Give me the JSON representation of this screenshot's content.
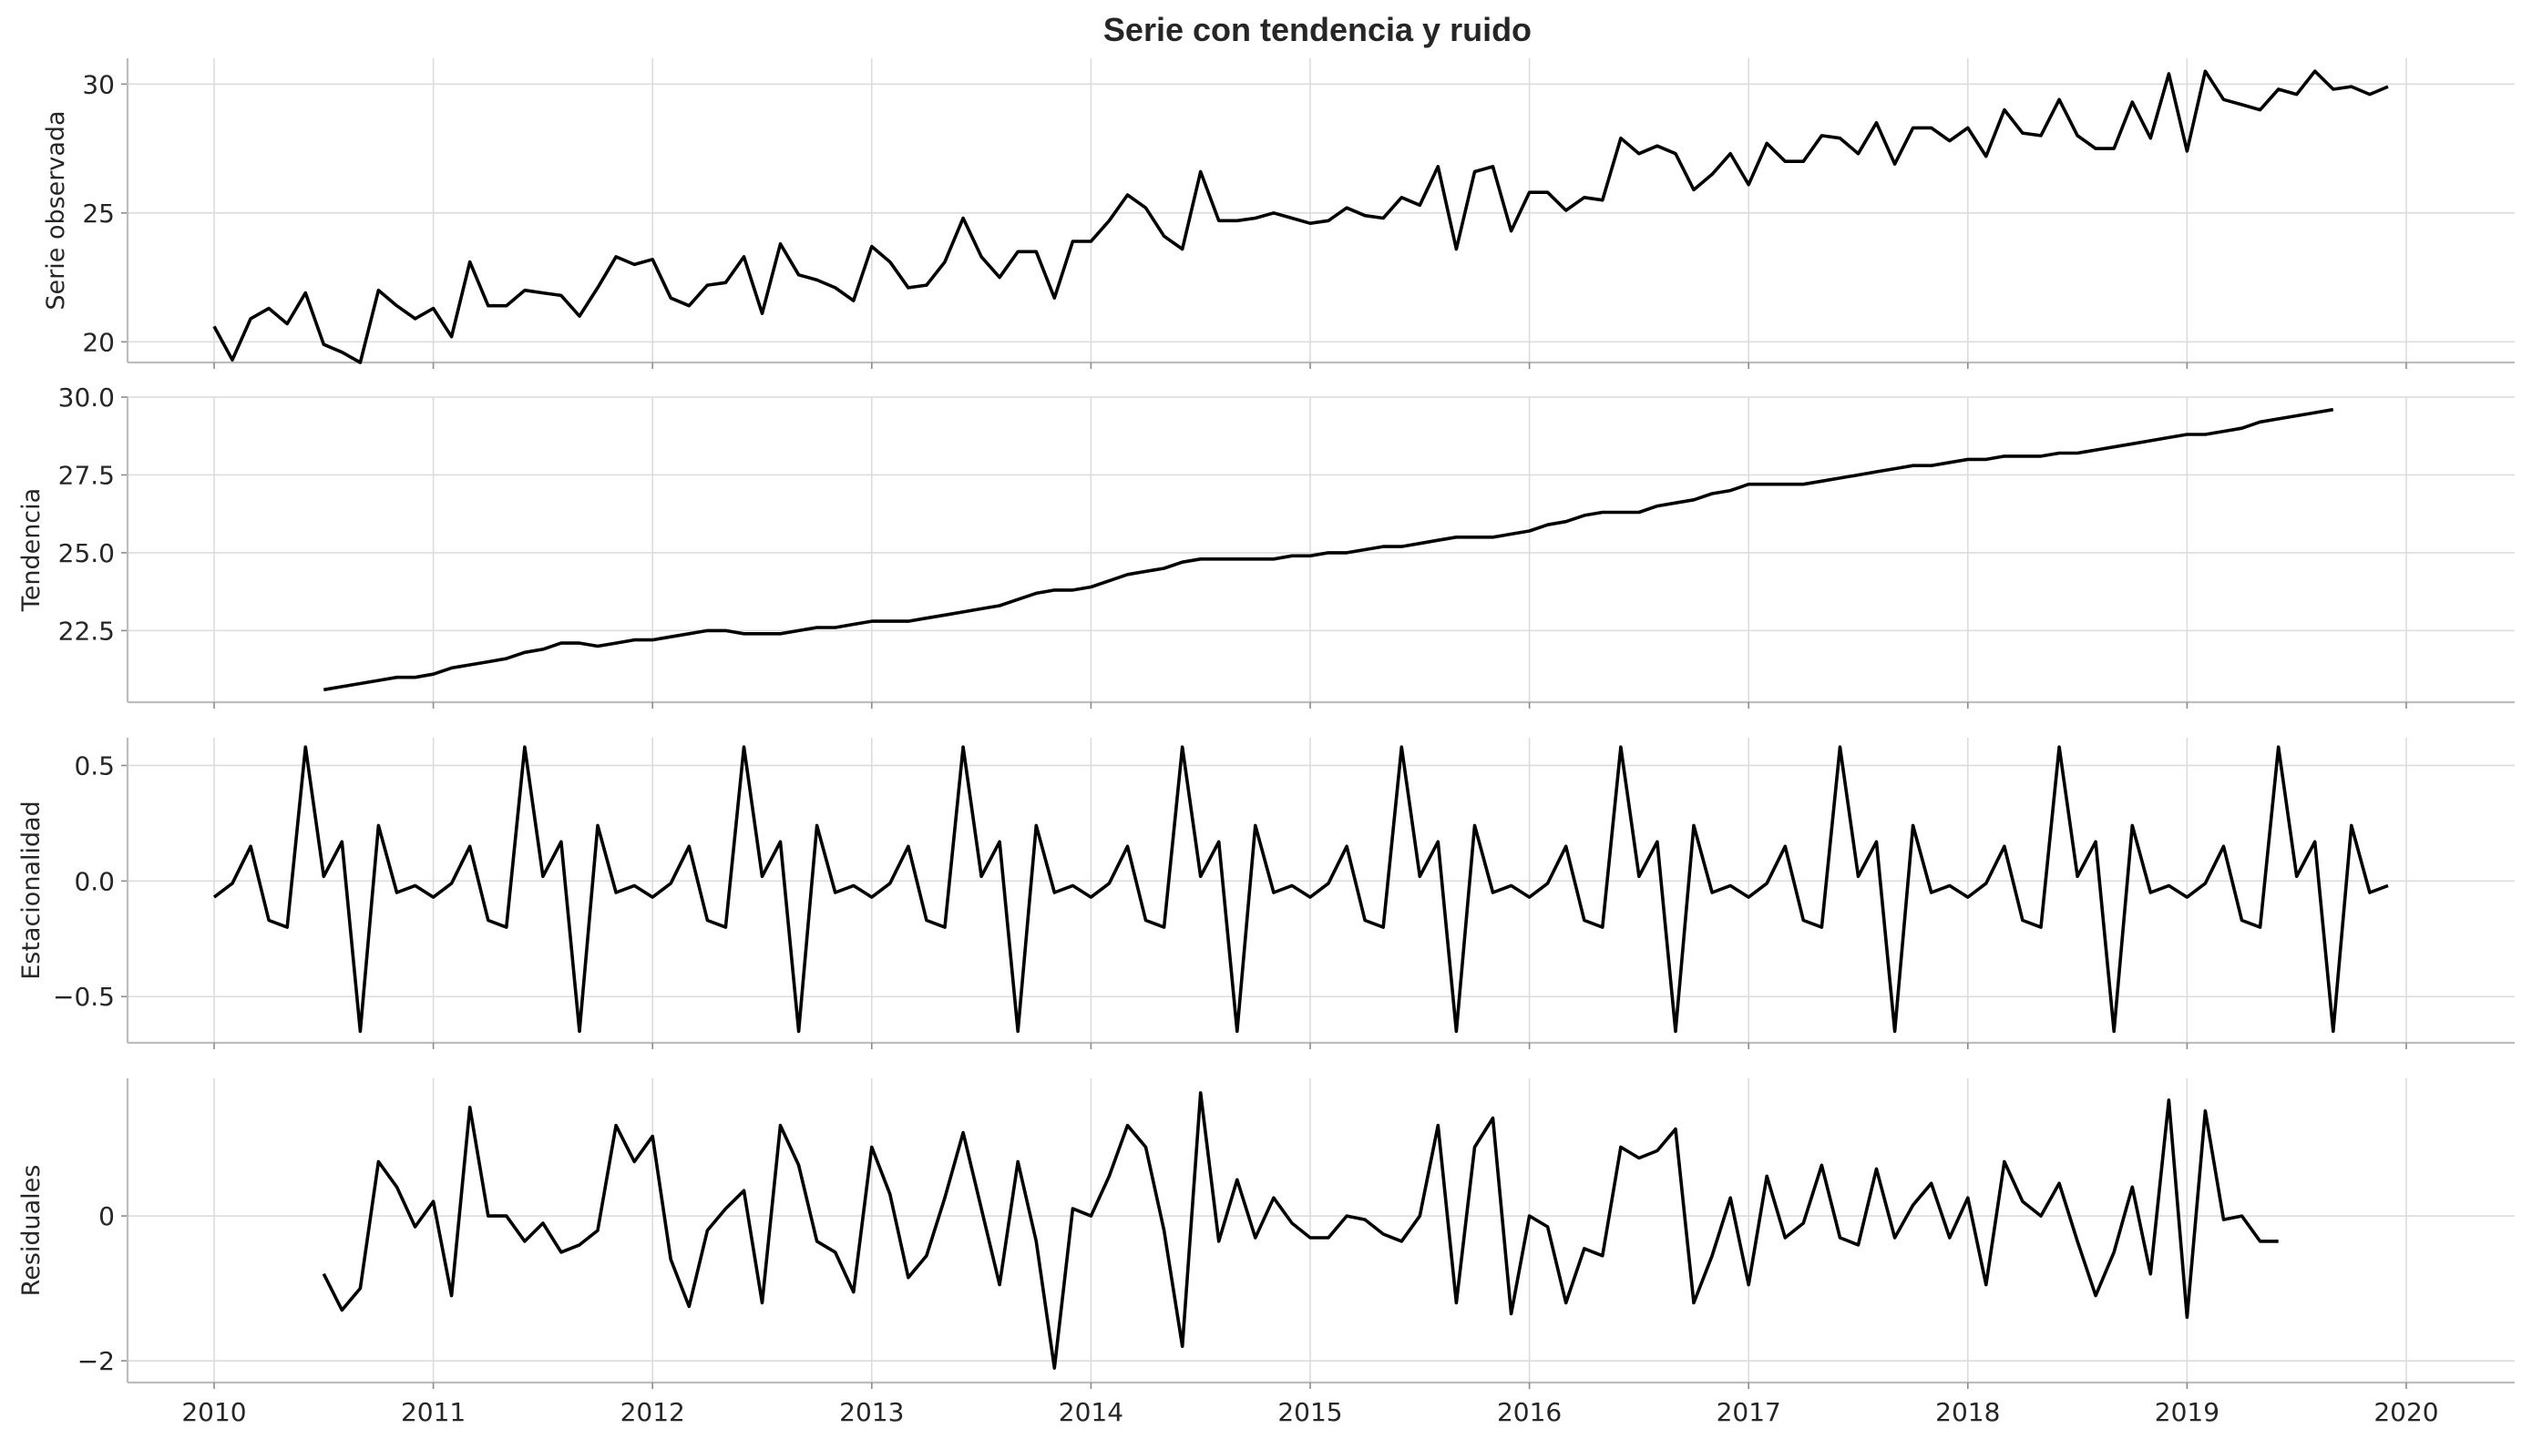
{
  "chart_data": {
    "type": "line",
    "title": "Serie con tendencia y ruido",
    "xlabel": "",
    "x_start": "2010-01",
    "x_frequency": "monthly",
    "x_ticks": [
      "2010",
      "2011",
      "2012",
      "2013",
      "2014",
      "2015",
      "2016",
      "2017",
      "2018",
      "2019",
      "2020"
    ],
    "grid": true,
    "line_color": "#000000",
    "panels": [
      {
        "ylabel": "Serie observada",
        "ylim": [
          19.2,
          31.0
        ],
        "yticks": [
          20,
          25,
          30
        ],
        "ytick_labels": [
          "20",
          "25",
          "30"
        ],
        "values": [
          20.6,
          19.3,
          20.9,
          21.3,
          20.7,
          21.9,
          19.9,
          19.6,
          19.2,
          22.0,
          21.4,
          20.9,
          21.3,
          20.2,
          23.1,
          21.4,
          21.4,
          22.0,
          21.9,
          21.8,
          21.0,
          22.1,
          23.3,
          23.0,
          23.2,
          21.7,
          21.4,
          22.2,
          22.3,
          23.3,
          21.1,
          23.8,
          22.6,
          22.4,
          22.1,
          21.6,
          23.7,
          23.1,
          22.1,
          22.2,
          23.1,
          24.8,
          23.3,
          22.5,
          23.5,
          23.5,
          21.7,
          23.9,
          23.9,
          24.7,
          25.7,
          25.2,
          24.1,
          23.6,
          26.6,
          24.7,
          24.7,
          24.8,
          25.0,
          24.8,
          24.6,
          24.7,
          25.2,
          24.9,
          24.8,
          25.6,
          25.3,
          26.8,
          23.6,
          26.6,
          26.8,
          24.3,
          25.8,
          25.8,
          25.1,
          25.6,
          25.5,
          27.9,
          27.3,
          27.6,
          27.3,
          25.9,
          26.5,
          27.3,
          26.1,
          27.7,
          27.0,
          27.0,
          28.0,
          27.9,
          27.3,
          28.5,
          26.9,
          28.3,
          28.3,
          27.8,
          28.3,
          27.2,
          29.0,
          28.1,
          28.0,
          29.4,
          28.0,
          27.5,
          27.5,
          29.3,
          27.9,
          30.4,
          27.4,
          30.5,
          29.4,
          29.2,
          29.0,
          29.8,
          29.6,
          30.5,
          29.8,
          29.9,
          29.6,
          29.9
        ]
      },
      {
        "ylabel": "Tendencia",
        "ylim": [
          20.2,
          30.0
        ],
        "yticks": [
          22.5,
          25.0,
          27.5,
          30.0
        ],
        "ytick_labels": [
          "22.5",
          "25.0",
          "27.5",
          "30.0"
        ],
        "start_index": 6,
        "values": [
          20.6,
          20.7,
          20.8,
          20.9,
          21.0,
          21.0,
          21.1,
          21.3,
          21.4,
          21.5,
          21.6,
          21.8,
          21.9,
          22.1,
          22.1,
          22.0,
          22.1,
          22.2,
          22.2,
          22.3,
          22.4,
          22.5,
          22.5,
          22.4,
          22.4,
          22.4,
          22.5,
          22.6,
          22.6,
          22.7,
          22.8,
          22.8,
          22.8,
          22.9,
          23.0,
          23.1,
          23.2,
          23.3,
          23.5,
          23.7,
          23.8,
          23.8,
          23.9,
          24.1,
          24.3,
          24.4,
          24.5,
          24.7,
          24.8,
          24.8,
          24.8,
          24.8,
          24.8,
          24.9,
          24.9,
          25.0,
          25.0,
          25.1,
          25.2,
          25.2,
          25.3,
          25.4,
          25.5,
          25.5,
          25.5,
          25.6,
          25.7,
          25.9,
          26.0,
          26.2,
          26.3,
          26.3,
          26.3,
          26.5,
          26.6,
          26.7,
          26.9,
          27.0,
          27.2,
          27.2,
          27.2,
          27.2,
          27.3,
          27.4,
          27.5,
          27.6,
          27.7,
          27.8,
          27.8,
          27.9,
          28.0,
          28.0,
          28.1,
          28.1,
          28.1,
          28.2,
          28.2,
          28.3,
          28.4,
          28.5,
          28.6,
          28.7,
          28.8,
          28.8,
          28.9,
          29.0,
          29.2,
          29.3,
          29.4,
          29.5,
          29.6
        ]
      },
      {
        "ylabel": "Estacionalidad",
        "ylim": [
          -0.7,
          0.62
        ],
        "yticks": [
          -0.5,
          0.0,
          0.5
        ],
        "ytick_labels": [
          "−0.5",
          "0.0",
          "0.5"
        ],
        "values": [
          -0.07,
          -0.01,
          0.15,
          -0.17,
          -0.2,
          0.58,
          0.02,
          0.17,
          -0.65,
          0.24,
          -0.05,
          -0.02,
          -0.07,
          -0.01,
          0.15,
          -0.17,
          -0.2,
          0.58,
          0.02,
          0.17,
          -0.65,
          0.24,
          -0.05,
          -0.02,
          -0.07,
          -0.01,
          0.15,
          -0.17,
          -0.2,
          0.58,
          0.02,
          0.17,
          -0.65,
          0.24,
          -0.05,
          -0.02,
          -0.07,
          -0.01,
          0.15,
          -0.17,
          -0.2,
          0.58,
          0.02,
          0.17,
          -0.65,
          0.24,
          -0.05,
          -0.02,
          -0.07,
          -0.01,
          0.15,
          -0.17,
          -0.2,
          0.58,
          0.02,
          0.17,
          -0.65,
          0.24,
          -0.05,
          -0.02,
          -0.07,
          -0.01,
          0.15,
          -0.17,
          -0.2,
          0.58,
          0.02,
          0.17,
          -0.65,
          0.24,
          -0.05,
          -0.02,
          -0.07,
          -0.01,
          0.15,
          -0.17,
          -0.2,
          0.58,
          0.02,
          0.17,
          -0.65,
          0.24,
          -0.05,
          -0.02,
          -0.07,
          -0.01,
          0.15,
          -0.17,
          -0.2,
          0.58,
          0.02,
          0.17,
          -0.65,
          0.24,
          -0.05,
          -0.02,
          -0.07,
          -0.01,
          0.15,
          -0.17,
          -0.2,
          0.58,
          0.02,
          0.17,
          -0.65,
          0.24,
          -0.05,
          -0.02,
          -0.07,
          -0.01,
          0.15,
          -0.17,
          -0.2,
          0.58,
          0.02,
          0.17,
          -0.65,
          0.24,
          -0.05,
          -0.02
        ]
      },
      {
        "ylabel": "Residuales",
        "ylim": [
          -2.3,
          1.9
        ],
        "yticks": [
          -2,
          0
        ],
        "ytick_labels": [
          "−2",
          "0"
        ],
        "start_index": 6,
        "values": [
          -0.8,
          -1.3,
          -1.0,
          0.75,
          0.4,
          -0.15,
          0.2,
          -1.1,
          1.5,
          0.0,
          0.0,
          -0.35,
          -0.1,
          -0.5,
          -0.4,
          -0.2,
          1.25,
          0.75,
          1.1,
          -0.6,
          -1.25,
          -0.2,
          0.1,
          0.35,
          -1.2,
          1.25,
          0.7,
          -0.35,
          -0.5,
          -1.05,
          0.95,
          0.3,
          -0.85,
          -0.55,
          0.25,
          1.15,
          0.1,
          -0.95,
          0.75,
          -0.35,
          -2.1,
          0.1,
          0.0,
          0.55,
          1.25,
          0.95,
          -0.2,
          -1.8,
          1.7,
          -0.35,
          0.5,
          -0.3,
          0.25,
          -0.1,
          -0.3,
          -0.3,
          0.0,
          -0.05,
          -0.25,
          -0.35,
          0.0,
          1.25,
          -1.2,
          0.95,
          1.35,
          -1.35,
          0.0,
          -0.15,
          -1.2,
          -0.45,
          -0.55,
          0.95,
          0.8,
          0.9,
          1.2,
          -1.2,
          -0.55,
          0.25,
          -0.95,
          0.55,
          -0.3,
          -0.1,
          0.7,
          -0.3,
          -0.4,
          0.65,
          -0.3,
          0.15,
          0.45,
          -0.3,
          0.25,
          -0.95,
          0.75,
          0.2,
          0.0,
          0.45,
          -0.35,
          -1.1,
          -0.5,
          0.4,
          -0.8,
          1.6,
          -1.4,
          1.45,
          -0.05,
          0.0,
          -0.35,
          -0.35
        ]
      }
    ]
  }
}
